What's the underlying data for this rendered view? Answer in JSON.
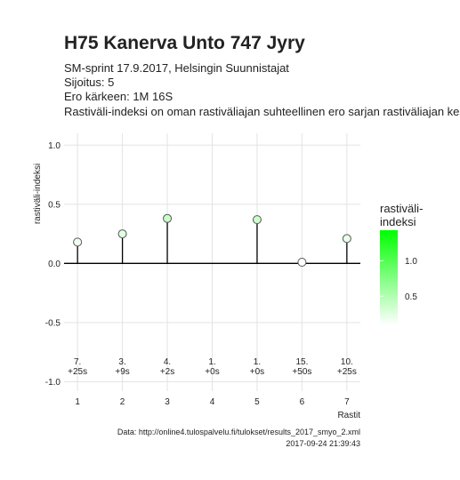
{
  "chart_data": {
    "type": "lollipop",
    "title": "H75 Kanerva Unto 747 Jyry",
    "subtitle": [
      "SM-sprint 17.9.2017, Helsingin Suunnistajat",
      "Sijoitus: 5",
      "Ero kärkeen: 1M 16S",
      "Rastiväli-indeksi on oman rastiväliajan suhteellinen ero sarjan rastiväliajan keskiarvoon"
    ],
    "x_label": "Rastit",
    "y_label": "rastiväli-indeksi",
    "x": [
      1,
      2,
      3,
      4,
      5,
      6,
      7
    ],
    "series": [
      {
        "name": "rastiväli-indeksi",
        "values": [
          0.18,
          0.25,
          0.38,
          null,
          0.37,
          0.01,
          0.21
        ]
      }
    ],
    "annotations": [
      [
        "7.",
        "+25s"
      ],
      [
        "3.",
        "+9s"
      ],
      [
        "4.",
        "+2s"
      ],
      [
        "1.",
        "+0s"
      ],
      [
        "1.",
        "+0s"
      ],
      [
        "15.",
        "+50s"
      ],
      [
        "10.",
        "+25s"
      ]
    ],
    "annotation_y": -0.9,
    "xlim": [
      0.7,
      7.3
    ],
    "xticks": [
      1,
      2,
      3,
      4,
      5,
      6,
      7
    ],
    "ylim": [
      -1.08,
      1.1
    ],
    "yticks": [
      -1.0,
      -0.5,
      0.0,
      0.5,
      1.0
    ],
    "yticks_labels": [
      "-1.0",
      "-0.5",
      "0.0",
      "0.5",
      "1.0"
    ],
    "grid": true,
    "legend_title": [
      "rastiväli-",
      "indeksi"
    ],
    "color_low": "#ffffff",
    "color_high": "#00ff00",
    "colorbar_lim": [
      0.09,
      1.43
    ],
    "colorbar_ticks": [
      0.5,
      1.0
    ],
    "colorbar_tick_labels": [
      "0.5",
      "1.0"
    ],
    "caption": [
      "Data: http://online4.tulospalvelu.fi/tulokset/results_2017_smyo_2.xml",
      "2017-09-24 21:39:43"
    ]
  }
}
